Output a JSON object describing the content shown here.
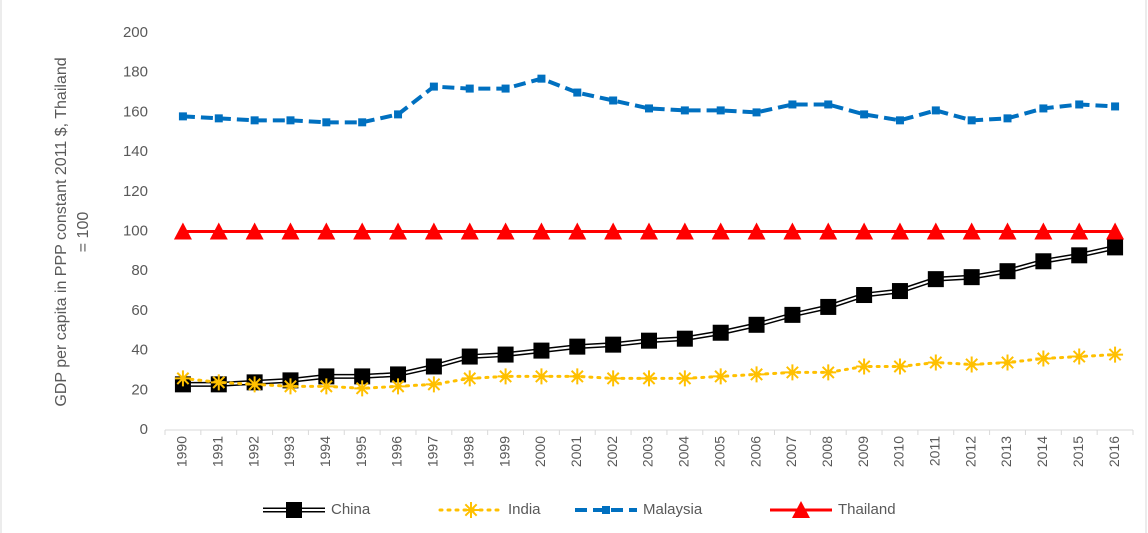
{
  "chart_data": {
    "type": "line",
    "ylabel_lines": [
      "GDP per capita in  PPP constant 2011 $, Thailand",
      "= 100"
    ],
    "categories": [
      "1990",
      "1991",
      "1992",
      "1993",
      "1994",
      "1995",
      "1996",
      "1997",
      "1998",
      "1999",
      "2000",
      "2001",
      "2002",
      "2003",
      "2004",
      "2005",
      "2006",
      "2007",
      "2008",
      "2009",
      "2010",
      "2011",
      "2012",
      "2013",
      "2014",
      "2015",
      "2016"
    ],
    "ylim": [
      0,
      200
    ],
    "yticks": [
      0,
      20,
      40,
      60,
      80,
      100,
      120,
      140,
      160,
      180,
      200
    ],
    "legend": "bottom",
    "series": [
      {
        "name": "China",
        "color": "#000000",
        "line_style": "double",
        "marker": "square",
        "values": [
          23,
          23,
          24,
          25,
          27,
          27,
          28,
          32,
          37,
          38,
          40,
          42,
          43,
          45,
          46,
          49,
          53,
          58,
          62,
          68,
          70,
          76,
          77,
          80,
          85,
          88,
          92
        ]
      },
      {
        "name": "India",
        "color": "#ffc000",
        "line_style": "dotted",
        "marker": "asterisk",
        "values": [
          26,
          24,
          23,
          22,
          22,
          21,
          22,
          23,
          26,
          27,
          27,
          27,
          26,
          26,
          26,
          27,
          28,
          29,
          29,
          32,
          32,
          34,
          33,
          34,
          36,
          37,
          38
        ]
      },
      {
        "name": "Malaysia",
        "color": "#0070c0",
        "line_style": "dashed",
        "marker": "small-square",
        "values": [
          158,
          157,
          156,
          156,
          155,
          155,
          159,
          173,
          172,
          172,
          177,
          170,
          166,
          162,
          161,
          161,
          160,
          164,
          164,
          159,
          156,
          161,
          156,
          157,
          162,
          164,
          163
        ]
      },
      {
        "name": "Thailand",
        "color": "#ff0000",
        "line_style": "solid",
        "marker": "triangle",
        "values": [
          100,
          100,
          100,
          100,
          100,
          100,
          100,
          100,
          100,
          100,
          100,
          100,
          100,
          100,
          100,
          100,
          100,
          100,
          100,
          100,
          100,
          100,
          100,
          100,
          100,
          100,
          100
        ]
      }
    ]
  }
}
